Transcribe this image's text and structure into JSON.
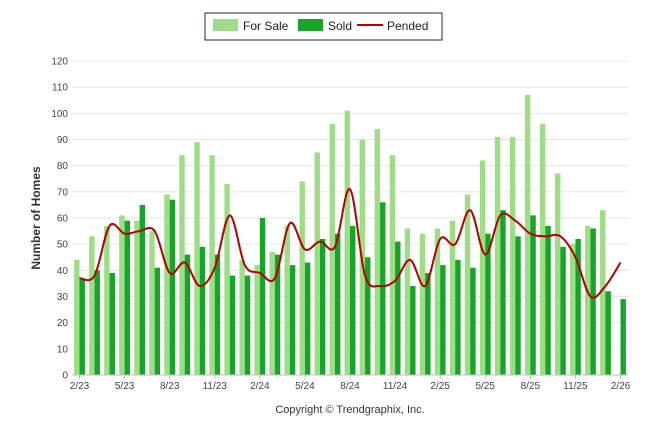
{
  "colors": {
    "for_sale": "#9fdc88",
    "sold": "#16a528",
    "pended": "#b50000"
  },
  "footer": "Copyright © Trendgraphix, Inc.",
  "chart_data": {
    "type": "bar",
    "title": "",
    "xlabel": "",
    "ylabel": "Number of Homes",
    "ylim": [
      0,
      120
    ],
    "yticks": [
      0,
      10,
      20,
      30,
      40,
      50,
      60,
      70,
      80,
      90,
      100,
      110,
      120
    ],
    "grid": true,
    "legend_position": "top-center",
    "categories": [
      "2/23",
      "3/23",
      "4/23",
      "5/23",
      "6/23",
      "7/23",
      "8/23",
      "9/23",
      "10/23",
      "11/23",
      "12/23",
      "1/24",
      "2/24",
      "3/24",
      "4/24",
      "5/24",
      "6/24",
      "7/24",
      "8/24",
      "9/24",
      "10/24",
      "11/24",
      "12/24",
      "1/25",
      "2/25",
      "3/25",
      "4/25",
      "5/25",
      "6/25",
      "7/25",
      "8/25",
      "9/25",
      "10/25",
      "11/25",
      "12/25",
      "1/26",
      "2/26"
    ],
    "xtick_labels": [
      "2/23",
      "5/23",
      "8/23",
      "11/23",
      "2/24",
      "5/24",
      "8/24",
      "11/24",
      "2/25",
      "5/25",
      "8/25",
      "11/25",
      "2/26"
    ],
    "series": [
      {
        "name": "For Sale",
        "kind": "bar",
        "values": [
          44,
          53,
          57,
          61,
          59,
          55,
          69,
          84,
          89,
          84,
          73,
          44,
          42,
          47,
          57,
          74,
          85,
          96,
          101,
          90,
          94,
          84,
          56,
          54,
          56,
          59,
          69,
          82,
          91,
          91,
          107,
          96,
          77,
          50,
          57,
          63,
          0
        ]
      },
      {
        "name": "Sold",
        "kind": "bar",
        "values": [
          37,
          40,
          39,
          59,
          65,
          41,
          67,
          46,
          49,
          46,
          38,
          38,
          60,
          46,
          42,
          43,
          52,
          54,
          57,
          45,
          66,
          51,
          34,
          39,
          42,
          44,
          41,
          54,
          63,
          53,
          61,
          57,
          49,
          52,
          56,
          32,
          29
        ]
      },
      {
        "name": "Pended",
        "kind": "line",
        "values": [
          37,
          38,
          57,
          54,
          55,
          55,
          39,
          43,
          34,
          41,
          61,
          42,
          39,
          37,
          58,
          48,
          51,
          49,
          71,
          38,
          34,
          36,
          44,
          34,
          52,
          50,
          63,
          46,
          61,
          59,
          54,
          53,
          53,
          45,
          30,
          34,
          43
        ]
      }
    ]
  }
}
